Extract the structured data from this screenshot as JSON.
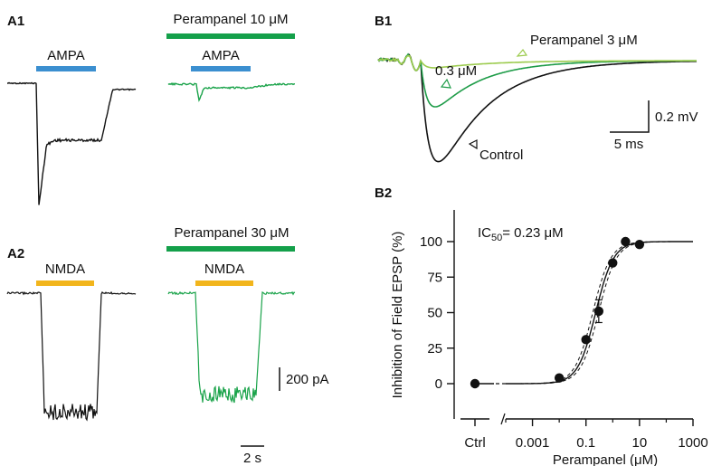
{
  "panels": {
    "a1": "A1",
    "a2": "A2",
    "b1": "B1",
    "b2": "B2"
  },
  "colors": {
    "ampa_bar": "#3b8fd0",
    "nmda_bar": "#f2b51c",
    "perampanel_bar": "#14a04a",
    "trace_black": "#111111",
    "trace_green": "#1aa34a",
    "trace_dark_green": "#1e9c48",
    "trace_light_green": "#9ccb4e"
  },
  "a1": {
    "drug_label": "AMPA",
    "drug_label_treated": "AMPA",
    "treatment_label": "Perampanel 10 μM"
  },
  "a2": {
    "drug_label": "NMDA",
    "drug_label_treated": "NMDA",
    "treatment_label": "Perampanel 30 μM"
  },
  "scalebars_a": {
    "current": "200 pA",
    "time": "2 s"
  },
  "b1": {
    "trace_labels": [
      "Perampanel 3 μM",
      "0.3 μM",
      "Control"
    ],
    "scale_voltage": "0.2 mV",
    "scale_time": "5 ms"
  },
  "chart_data": {
    "type": "scatter",
    "title": "",
    "ylabel": "Inhibition of Field EPSP (%)",
    "xlabel": "Perampanel (μM)",
    "x_scale": "log",
    "xlim": [
      0.0001,
      1000
    ],
    "ylim": [
      -25,
      125
    ],
    "yticks": [
      0,
      25,
      50,
      75,
      100
    ],
    "xticks": [
      0.001,
      0.1,
      10,
      1000
    ],
    "xtick_labels": [
      "0.001",
      "0.1",
      "10",
      "1000"
    ],
    "control_label": "Ctrl",
    "control_value": 0,
    "annotation": {
      "prefix": "IC",
      "subscript": "50",
      "suffix": "= 0.23 μM"
    },
    "points": [
      {
        "x": 0.01,
        "y": 4
      },
      {
        "x": 0.1,
        "y": 31
      },
      {
        "x": 0.3,
        "y": 51
      },
      {
        "x": 1,
        "y": 85
      },
      {
        "x": 3,
        "y": 100
      },
      {
        "x": 10,
        "y": 98
      }
    ],
    "error_bars": [
      {
        "x": 0.3,
        "y": 51,
        "err": 8
      }
    ],
    "fit": {
      "ic50": 0.23,
      "hill": 1.3,
      "top": 100,
      "bottom": 0
    }
  }
}
